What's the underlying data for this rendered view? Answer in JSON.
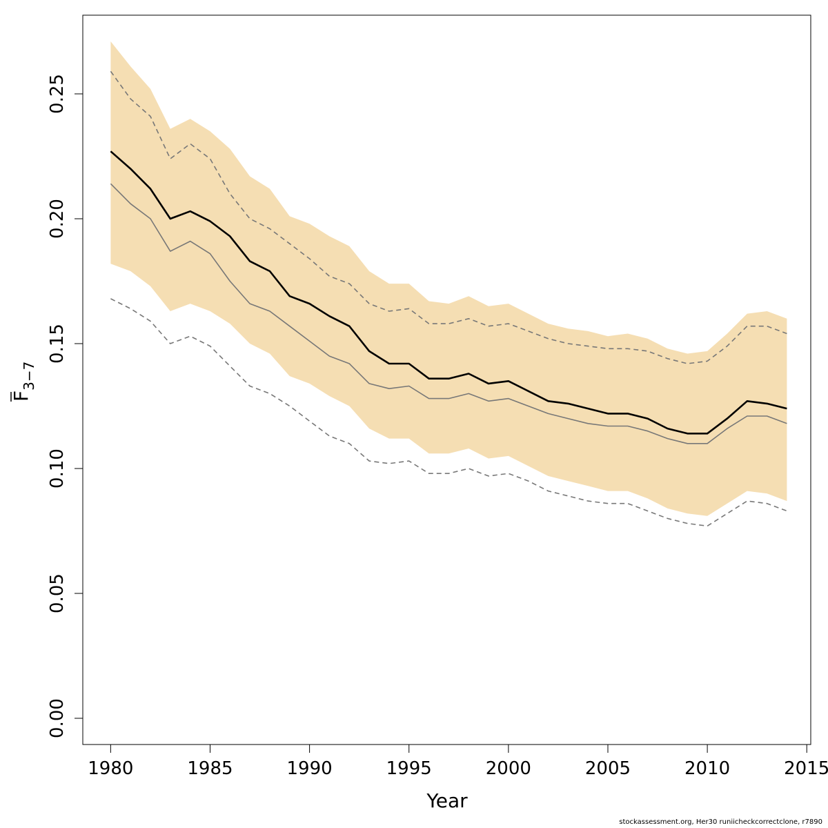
{
  "chart_data": {
    "type": "line",
    "xlabel": "Year",
    "ylabel": "F",
    "ylabel_subscript": "3−7",
    "xlim": [
      1978.6,
      2015.2
    ],
    "ylim": [
      -0.0105,
      0.2815
    ],
    "x_ticks": [
      "1980",
      "1985",
      "1990",
      "1995",
      "2000",
      "2005",
      "2010",
      "2015"
    ],
    "y_ticks": [
      "0.00",
      "0.05",
      "0.10",
      "0.15",
      "0.20",
      "0.25"
    ],
    "x": [
      1980,
      1981,
      1982,
      1983,
      1984,
      1985,
      1986,
      1987,
      1988,
      1989,
      1990,
      1991,
      1992,
      1993,
      1994,
      1995,
      1996,
      1997,
      1998,
      1999,
      2000,
      2001,
      2002,
      2003,
      2004,
      2005,
      2006,
      2007,
      2008,
      2009,
      2010,
      2011,
      2012,
      2013,
      2014
    ],
    "band": {
      "color": "#f5deb3",
      "upper": [
        0.271,
        0.261,
        0.252,
        0.236,
        0.24,
        0.235,
        0.228,
        0.217,
        0.212,
        0.201,
        0.198,
        0.193,
        0.189,
        0.179,
        0.174,
        0.174,
        0.167,
        0.166,
        0.169,
        0.165,
        0.166,
        0.162,
        0.158,
        0.156,
        0.155,
        0.153,
        0.154,
        0.152,
        0.148,
        0.146,
        0.147,
        0.154,
        0.162,
        0.163,
        0.16
      ],
      "lower": [
        0.182,
        0.179,
        0.173,
        0.163,
        0.166,
        0.163,
        0.158,
        0.15,
        0.146,
        0.137,
        0.134,
        0.129,
        0.125,
        0.116,
        0.112,
        0.112,
        0.106,
        0.106,
        0.108,
        0.104,
        0.105,
        0.101,
        0.097,
        0.095,
        0.093,
        0.091,
        0.091,
        0.088,
        0.084,
        0.082,
        0.081,
        0.086,
        0.091,
        0.09,
        0.087
      ]
    },
    "series": [
      {
        "style": "solid-black",
        "color": "#000000",
        "values": [
          0.227,
          0.22,
          0.212,
          0.2,
          0.203,
          0.199,
          0.193,
          0.183,
          0.179,
          0.169,
          0.166,
          0.161,
          0.157,
          0.147,
          0.142,
          0.142,
          0.136,
          0.136,
          0.138,
          0.134,
          0.135,
          0.131,
          0.127,
          0.126,
          0.124,
          0.122,
          0.122,
          0.12,
          0.116,
          0.114,
          0.114,
          0.12,
          0.127,
          0.126,
          0.124
        ]
      },
      {
        "style": "solid-grey",
        "color": "#777777",
        "values": [
          0.214,
          0.206,
          0.2,
          0.187,
          0.191,
          0.186,
          0.175,
          0.166,
          0.163,
          0.157,
          0.151,
          0.145,
          0.142,
          0.134,
          0.132,
          0.133,
          0.128,
          0.128,
          0.13,
          0.127,
          0.128,
          0.125,
          0.122,
          0.12,
          0.118,
          0.117,
          0.117,
          0.115,
          0.112,
          0.11,
          0.11,
          0.116,
          0.121,
          0.121,
          0.118
        ]
      },
      {
        "style": "dashed-upper",
        "color": "#777777",
        "values": [
          0.259,
          0.248,
          0.241,
          0.224,
          0.23,
          0.224,
          0.21,
          0.2,
          0.196,
          0.19,
          0.184,
          0.177,
          0.174,
          0.166,
          0.163,
          0.164,
          0.158,
          0.158,
          0.16,
          0.157,
          0.158,
          0.155,
          0.152,
          0.15,
          0.149,
          0.148,
          0.148,
          0.147,
          0.144,
          0.142,
          0.143,
          0.149,
          0.157,
          0.157,
          0.154
        ]
      },
      {
        "style": "dashed-lower",
        "color": "#777777",
        "values": [
          0.168,
          0.164,
          0.159,
          0.15,
          0.153,
          0.149,
          0.141,
          0.133,
          0.13,
          0.125,
          0.119,
          0.113,
          0.11,
          0.103,
          0.102,
          0.103,
          0.098,
          0.098,
          0.1,
          0.097,
          0.098,
          0.095,
          0.091,
          0.089,
          0.087,
          0.086,
          0.086,
          0.083,
          0.08,
          0.078,
          0.077,
          0.082,
          0.087,
          0.086,
          0.083
        ]
      }
    ],
    "grid": false,
    "legend": "none"
  },
  "footer": {
    "note": "stockassessment.org, Her30  runiicheckcorrectclone, r7890"
  }
}
